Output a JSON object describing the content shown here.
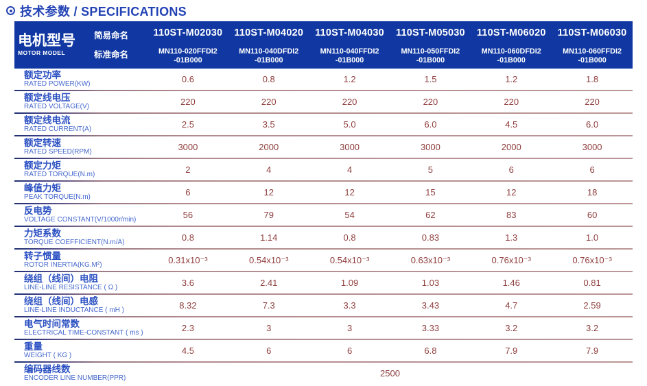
{
  "title": {
    "icon": "bullet-circle-icon",
    "text": "技术参数 / SPECIFICATIONS"
  },
  "colors": {
    "header_bg": "#1138a2",
    "header_text": "#ffffff",
    "title_blue": "#2343b5",
    "label_cn_blue": "#2b50c2",
    "label_en_blue": "#4467cd",
    "value_maroon": "#8f3d3d"
  },
  "table": {
    "header": {
      "row_label_cn": "电机型号",
      "row_label_en": "MOTOR MODEL",
      "simple_name_label": "简易命名",
      "standard_name_label": "标准命名",
      "models": [
        {
          "simple": "110ST-M02030",
          "standard_line1": "MN110-020FFDI2",
          "standard_line2": "-01B000"
        },
        {
          "simple": "110ST-M04020",
          "standard_line1": "MN110-040DFDI2",
          "standard_line2": "-01B000"
        },
        {
          "simple": "110ST-M04030",
          "standard_line1": "MN110-040FFDI2",
          "standard_line2": "-01B000"
        },
        {
          "simple": "110ST-M05030",
          "standard_line1": "MN110-050FFDI2",
          "standard_line2": "-01B000"
        },
        {
          "simple": "110ST-M06020",
          "standard_line1": "MN110-060DFDI2",
          "standard_line2": "-01B000"
        },
        {
          "simple": "110ST-M06030",
          "standard_line1": "MN110-060FFDI2",
          "standard_line2": "-01B000"
        }
      ]
    },
    "rows": [
      {
        "cn": "额定功率",
        "en": "RATED POWER(KW)",
        "values": [
          "0.6",
          "0.8",
          "1.2",
          "1.5",
          "1.2",
          "1.8"
        ]
      },
      {
        "cn": "额定线电压",
        "en": "RATED VOLTAGE(V)",
        "values": [
          "220",
          "220",
          "220",
          "220",
          "220",
          "220"
        ]
      },
      {
        "cn": "额定线电流",
        "en": "RATED CURRENT(A)",
        "values": [
          "2.5",
          "3.5",
          "5.0",
          "6.0",
          "4.5",
          "6.0"
        ]
      },
      {
        "cn": "额定转速",
        "en": "RATED SPEED(RPM)",
        "values": [
          "3000",
          "2000",
          "3000",
          "3000",
          "2000",
          "3000"
        ]
      },
      {
        "cn": "额定力矩",
        "en": "RATED TORQUE(N.m)",
        "values": [
          "2",
          "4",
          "4",
          "5",
          "6",
          "6"
        ]
      },
      {
        "cn": "峰值力矩",
        "en": "PEAK TORQUE(N.m)",
        "values": [
          "6",
          "12",
          "12",
          "15",
          "12",
          "18"
        ]
      },
      {
        "cn": "反电势",
        "en": "VOLTAGE CONSTANT(V/1000r/min)",
        "values": [
          "56",
          "79",
          "54",
          "62",
          "83",
          "60"
        ]
      },
      {
        "cn": "力矩系数",
        "en": "TORQUE COEFFICIENT(N.m/A)",
        "values": [
          "0.8",
          "1.14",
          "0.8",
          "0.83",
          "1.3",
          "1.0"
        ]
      },
      {
        "cn": "转子惯量",
        "en": "ROTOR INERTIA(KG.M²)",
        "values": [
          "0.31x10⁻³",
          "0.54x10⁻³",
          "0.54x10⁻³",
          "0.63x10⁻³",
          "0.76x10⁻³",
          "0.76x10⁻³"
        ]
      },
      {
        "cn": "绕组（线间）电阻",
        "en": "LINE-LINE RESISTANCE ( Ω )",
        "values": [
          "3.6",
          "2.41",
          "1.09",
          "1.03",
          "1.46",
          "0.81"
        ]
      },
      {
        "cn": "绕组（线间）电感",
        "en": "LINE-LINE INDUCTANCE ( mH )",
        "values": [
          "8.32",
          "7.3",
          "3.3",
          "3.43",
          "4.7",
          "2.59"
        ]
      },
      {
        "cn": "电气时间常数",
        "en": "ELECTRICAL TIME-CONSTANT ( ms )",
        "values": [
          "2.3",
          "3",
          "3",
          "3.33",
          "3.2",
          "3.2"
        ]
      },
      {
        "cn": "重量",
        "en": "WEIGHT ( KG )",
        "values": [
          "4.5",
          "6",
          "6",
          "6.8",
          "7.9",
          "7.9"
        ]
      }
    ],
    "encoder_row": {
      "cn": "编码器线数",
      "en": "ENCODER LINE NUMBER(PPR)",
      "value": "2500"
    }
  }
}
